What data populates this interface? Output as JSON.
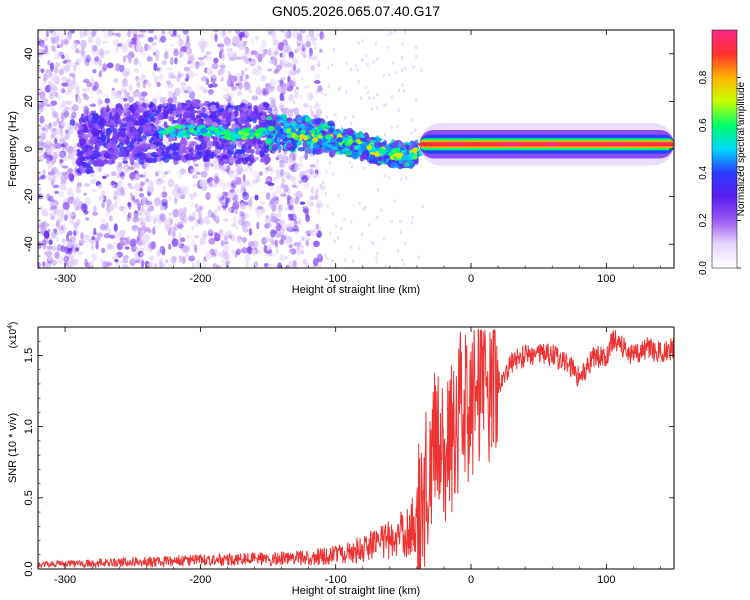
{
  "title": "GN05.2026.065.07.40.G17",
  "chart_data": [
    {
      "type": "heatmap",
      "title": "GN05.2026.065.07.40.G17",
      "xlabel": "Height of straight line (km)",
      "ylabel": "Frequency (Hz)",
      "xlim": [
        -320,
        150
      ],
      "ylim": [
        -50,
        50
      ],
      "xticks": [
        -300,
        -200,
        -100,
        0,
        100
      ],
      "xtick_labels": [
        "-300",
        "-200",
        "-100",
        "0",
        "100"
      ],
      "yticks": [
        -40,
        -20,
        0,
        20,
        40
      ],
      "ytick_labels": [
        "-40",
        "-20",
        "0",
        "20",
        "40"
      ],
      "colorbar": {
        "label": "Normalized spectral amplitude",
        "range": [
          0,
          1
        ],
        "ticks": [
          0,
          0.2,
          0.4,
          0.6,
          0.8
        ],
        "tick_labels": [
          "0.0",
          "0.2",
          "0.4",
          "0.6",
          "0.8"
        ],
        "colormap": [
          "#ffffff",
          "#e6d6fb",
          "#9b59f5",
          "#5a1ef0",
          "#2a3cff",
          "#00d8ff",
          "#00ff66",
          "#c8ff00",
          "#ffb400",
          "#ff3030",
          "#ff2a8a"
        ]
      },
      "ridge": {
        "x": [
          -280,
          -240,
          -200,
          -180,
          -150,
          -120,
          -100,
          -80,
          -60,
          -45,
          -35,
          -20,
          0,
          50,
          100,
          150
        ],
        "y": [
          5,
          7,
          8,
          6,
          7,
          6,
          4,
          1,
          -2,
          -3,
          0,
          1,
          2,
          2,
          2,
          2
        ]
      }
    },
    {
      "type": "line",
      "xlabel": "Height of straight line (km)",
      "ylabel": "SNR (10 * v/v)",
      "y_scale_label": "(x10",
      "y_scale_exponent": "4",
      "xlim": [
        -320,
        150
      ],
      "ylim": [
        0,
        1.7
      ],
      "xticks": [
        -300,
        -200,
        -100,
        0,
        100
      ],
      "xtick_labels": [
        "-300",
        "-200",
        "-100",
        "0",
        "100"
      ],
      "yticks": [
        0,
        0.5,
        1.0,
        1.5
      ],
      "ytick_labels": [
        "0.0",
        "0.5",
        "1.0",
        "1.5"
      ],
      "color": "#ee3333",
      "envelope": {
        "x": [
          -320,
          -250,
          -200,
          -150,
          -120,
          -100,
          -80,
          -60,
          -50,
          -40,
          -35,
          -30,
          -25,
          -20,
          -15,
          -10,
          -5,
          0,
          5,
          10,
          20,
          30,
          40,
          50,
          60,
          70,
          80,
          90,
          100,
          105,
          110,
          120,
          130,
          140,
          150
        ],
        "y": [
          0.03,
          0.05,
          0.06,
          0.07,
          0.08,
          0.1,
          0.14,
          0.2,
          0.25,
          0.32,
          0.5,
          0.75,
          1.0,
          0.8,
          0.9,
          1.05,
          1.2,
          1.12,
          1.3,
          1.25,
          1.3,
          1.45,
          1.5,
          1.52,
          1.5,
          1.45,
          1.35,
          1.48,
          1.5,
          1.62,
          1.58,
          1.5,
          1.55,
          1.52,
          1.55
        ]
      }
    }
  ]
}
